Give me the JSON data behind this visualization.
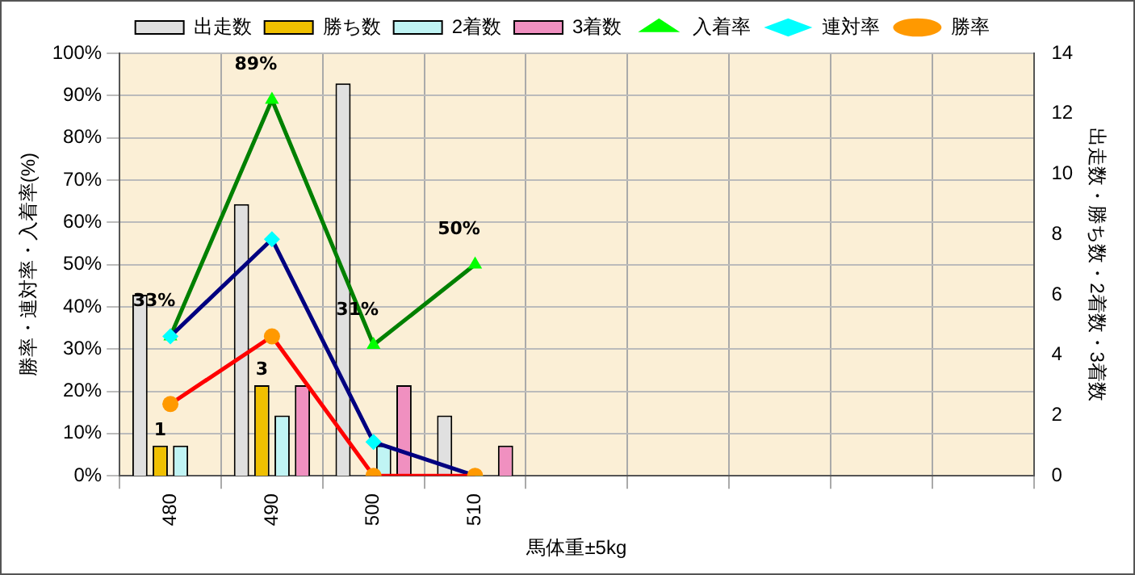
{
  "chart_data": {
    "type": "bar",
    "xlabel": "馬体重±5kg",
    "ylabel": "勝率・連対率・入着率(%)",
    "y2label": "出走数・勝ち数・2着数・3着数",
    "categories": [
      "480",
      "490",
      "500",
      "510",
      null,
      null,
      null,
      null,
      null
    ],
    "series": [
      {
        "name": "出走数",
        "axis": "y2",
        "color": "#e0e0e0",
        "values": [
          6,
          9,
          13,
          2,
          null,
          null,
          null,
          null,
          null
        ]
      },
      {
        "name": "勝ち数",
        "axis": "y2",
        "color": "#f0c000",
        "values": [
          1,
          3,
          0,
          0,
          null,
          null,
          null,
          null,
          null
        ],
        "value_labels": [
          "1",
          "3",
          null,
          null,
          null,
          null,
          null,
          null,
          null
        ]
      },
      {
        "name": "2着数",
        "axis": "y2",
        "color": "#c0f4f4",
        "values": [
          1,
          2,
          1,
          0,
          null,
          null,
          null,
          null,
          null
        ]
      },
      {
        "name": "3着数",
        "axis": "y2",
        "color": "#f090c0",
        "values": [
          0,
          3,
          3,
          1,
          null,
          null,
          null,
          null,
          null
        ]
      },
      {
        "name": "入着率",
        "type": "line",
        "color": "#008000",
        "marker": "triangle",
        "values": [
          33,
          89,
          31,
          50,
          null,
          null,
          null,
          null,
          null
        ],
        "value_labels": [
          "33%",
          "89%",
          "31%",
          "50%",
          null,
          null,
          null,
          null,
          null
        ]
      },
      {
        "name": "連対率",
        "type": "line",
        "color": "#000080",
        "marker": "diamond",
        "values": [
          33,
          56,
          8,
          0,
          null,
          null,
          null,
          null,
          null
        ]
      },
      {
        "name": "勝率",
        "type": "line",
        "color": "#ff0000",
        "marker": "circle",
        "values": [
          17,
          33,
          0,
          0,
          null,
          null,
          null,
          null,
          null
        ]
      }
    ],
    "ylim": [
      0,
      100
    ],
    "yticks": [
      {
        "value": 0,
        "label": "0%"
      },
      {
        "value": 10,
        "label": "10%"
      },
      {
        "value": 20,
        "label": "20%"
      },
      {
        "value": 30,
        "label": "30%"
      },
      {
        "value": 40,
        "label": "40%"
      },
      {
        "value": 50,
        "label": "50%"
      },
      {
        "value": 60,
        "label": "60%"
      },
      {
        "value": 70,
        "label": "70%"
      },
      {
        "value": 80,
        "label": "80%"
      },
      {
        "value": 90,
        "label": "90%"
      },
      {
        "value": 100,
        "label": "100%"
      }
    ],
    "y2lim": [
      0,
      14
    ],
    "y2ticks": [
      0,
      2,
      4,
      6,
      8,
      10,
      12,
      14
    ],
    "grid": true,
    "legend": "top",
    "line_style": "solid"
  }
}
